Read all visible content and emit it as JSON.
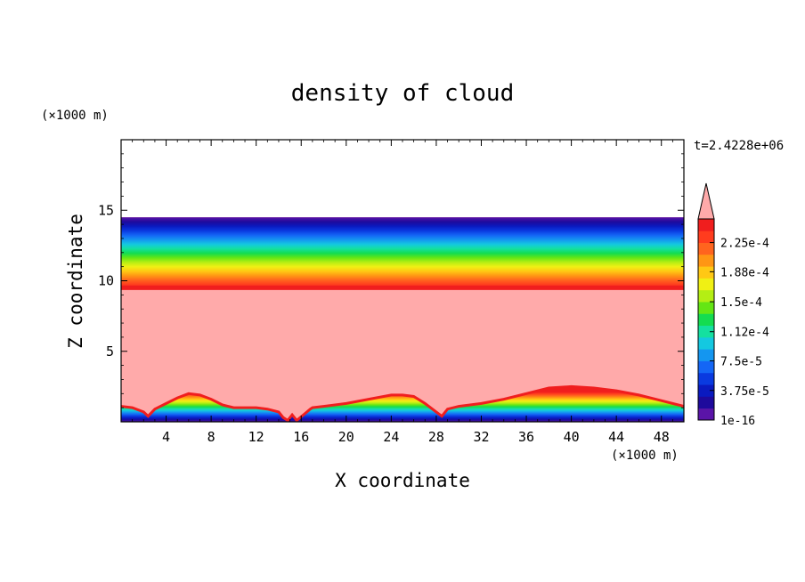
{
  "chart_data": {
    "type": "heatmap",
    "title": "density of cloud",
    "xlabel": "X coordinate",
    "ylabel": "Z coordinate",
    "x_unit": "(×1000 m)",
    "y_unit": "(×1000 m)",
    "time_label": "t=2.4228e+06",
    "xlim": [
      0,
      50
    ],
    "ylim": [
      0,
      20
    ],
    "x_ticks": [
      "4",
      "8",
      "12",
      "16",
      "20",
      "24",
      "28",
      "32",
      "36",
      "40",
      "44",
      "48"
    ],
    "x_tick_values": [
      4,
      8,
      12,
      16,
      20,
      24,
      28,
      32,
      36,
      40,
      44,
      48
    ],
    "y_ticks": [
      "5",
      "10",
      "15"
    ],
    "y_tick_values": [
      5,
      10,
      15
    ],
    "layers": {
      "uniform_top": 14.5,
      "top_band_bottom": 9.4,
      "core_level": 9.5
    },
    "surface_profile": {
      "x": [
        0,
        1,
        2,
        2.4,
        3,
        4,
        5,
        6,
        7,
        8,
        9,
        10,
        11,
        12,
        13,
        14,
        14.4,
        14.8,
        15.2,
        15.6,
        16.2,
        16.8,
        17,
        18,
        20,
        22,
        24,
        25,
        26,
        27,
        28,
        28.5,
        29,
        30,
        32,
        34,
        36,
        38,
        40,
        42,
        44,
        46,
        48,
        50
      ],
      "z": [
        1.1,
        1,
        0.7,
        0.4,
        0.9,
        1.3,
        1.7,
        2.0,
        1.9,
        1.6,
        1.2,
        1.0,
        1.0,
        1.0,
        0.9,
        0.7,
        0.3,
        0.1,
        0.5,
        0.1,
        0.5,
        0.9,
        1.0,
        1.1,
        1.3,
        1.6,
        1.9,
        1.9,
        1.8,
        1.3,
        0.7,
        0.4,
        0.9,
        1.1,
        1.3,
        1.6,
        2.0,
        2.4,
        2.5,
        2.4,
        2.2,
        1.9,
        1.5,
        1.1
      ]
    },
    "colorbar": {
      "labels": [
        "1e-16",
        "3.75e-5",
        "7.5e-5",
        "1.12e-4",
        "1.5e-4",
        "1.88e-4",
        "2.25e-4"
      ],
      "label_values": [
        0,
        3.75e-05,
        7.5e-05,
        0.000112,
        0.00015,
        0.000188,
        0.000225
      ],
      "colors": [
        "#5a14a8",
        "#1e0a9c",
        "#0a1ac0",
        "#0a3ae0",
        "#1466f5",
        "#1496f0",
        "#14c8e0",
        "#14e0a0",
        "#14dc50",
        "#64e614",
        "#b4ee14",
        "#f0f014",
        "#ffc814",
        "#ff9614",
        "#ff641e",
        "#ff3c1e",
        "#f01e1e"
      ],
      "over_color": "#ffaaaa",
      "extend": "max"
    }
  }
}
